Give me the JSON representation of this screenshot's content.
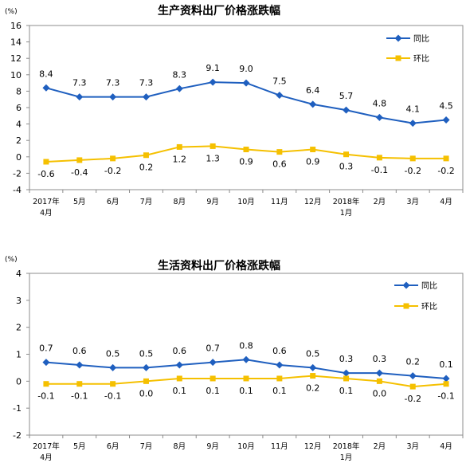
{
  "chart_data": [
    {
      "type": "line",
      "title": "生产资料出厂价格涨跌幅",
      "unit_label": "(%)",
      "ylim": [
        -4,
        16
      ],
      "yticks": [
        -4,
        -2,
        0,
        2,
        4,
        6,
        8,
        10,
        12,
        14,
        16
      ],
      "categories": [
        "2017年|4月",
        "5月",
        "6月",
        "7月",
        "8月",
        "9月",
        "10月",
        "11月",
        "12月",
        "2018年|1月",
        "2月",
        "3月",
        "4月"
      ],
      "legend_position": "top-right",
      "series": [
        {
          "name": "同比",
          "color": "#1f5fbf",
          "marker": "diamond",
          "values": [
            8.4,
            7.3,
            7.3,
            7.3,
            8.3,
            9.1,
            9.0,
            7.5,
            6.4,
            5.7,
            4.8,
            4.1,
            4.5
          ],
          "labels": [
            "8.4",
            "7.3",
            "7.3",
            "7.3",
            "8.3",
            "9.1",
            "9.0",
            "7.5",
            "6.4",
            "5.7",
            "4.8",
            "4.1",
            "4.5"
          ]
        },
        {
          "name": "环比",
          "color": "#f5c000",
          "marker": "square",
          "values": [
            -0.6,
            -0.4,
            -0.2,
            0.2,
            1.2,
            1.3,
            0.9,
            0.6,
            0.9,
            0.3,
            -0.1,
            -0.2,
            -0.2
          ],
          "labels": [
            "-0.6",
            "-0.4",
            "-0.2",
            "0.2",
            "1.2",
            "1.3",
            "0.9",
            "0.6",
            "0.9",
            "0.3",
            "-0.1",
            "-0.2",
            "-0.2"
          ]
        }
      ]
    },
    {
      "type": "line",
      "title": "生活资料出厂价格涨跌幅",
      "unit_label": "(%)",
      "ylim": [
        -2,
        4
      ],
      "yticks": [
        -2,
        -1,
        0,
        1,
        2,
        3,
        4
      ],
      "categories": [
        "2017年|4月",
        "5月",
        "6月",
        "7月",
        "8月",
        "9月",
        "10月",
        "11月",
        "12月",
        "2018年|1月",
        "2月",
        "3月",
        "4月"
      ],
      "legend_position": "top-right",
      "series": [
        {
          "name": "同比",
          "color": "#1f5fbf",
          "marker": "diamond",
          "values": [
            0.7,
            0.6,
            0.5,
            0.5,
            0.6,
            0.7,
            0.8,
            0.6,
            0.5,
            0.3,
            0.3,
            0.2,
            0.1
          ],
          "labels": [
            "0.7",
            "0.6",
            "0.5",
            "0.5",
            "0.6",
            "0.7",
            "0.8",
            "0.6",
            "0.5",
            "0.3",
            "0.3",
            "0.2",
            "0.1"
          ]
        },
        {
          "name": "环比",
          "color": "#f5c000",
          "marker": "square",
          "values": [
            -0.1,
            -0.1,
            -0.1,
            0.0,
            0.1,
            0.1,
            0.1,
            0.1,
            0.2,
            0.1,
            0.0,
            -0.2,
            -0.1
          ],
          "labels": [
            "-0.1",
            "-0.1",
            "-0.1",
            "0.0",
            "0.1",
            "0.1",
            "0.1",
            "0.1",
            "0.2",
            "0.1",
            "0.0",
            "-0.2",
            "-0.1"
          ]
        }
      ]
    }
  ]
}
